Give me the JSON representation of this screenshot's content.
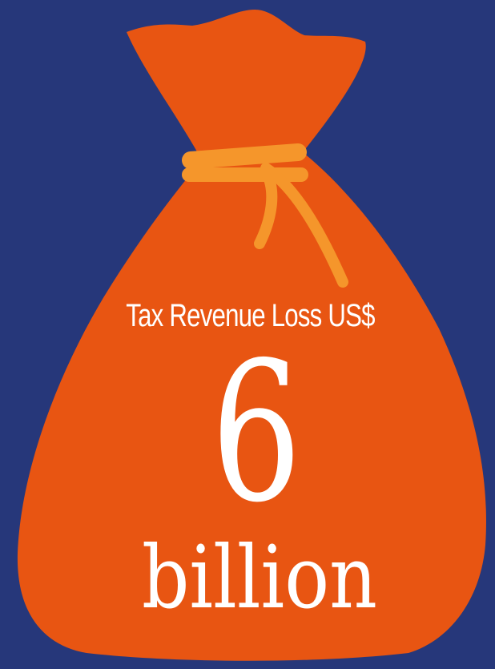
{
  "infographic": {
    "caption": "Tax Revenue Loss US$",
    "amount": "6",
    "unit": "billion"
  },
  "colors": {
    "background": "#26377a",
    "bag": "#e85512",
    "tie": "#f5962b",
    "text": "#ffffff"
  },
  "icons": {
    "bag": "money-bag-icon",
    "tie": "bag-tie-icon"
  }
}
